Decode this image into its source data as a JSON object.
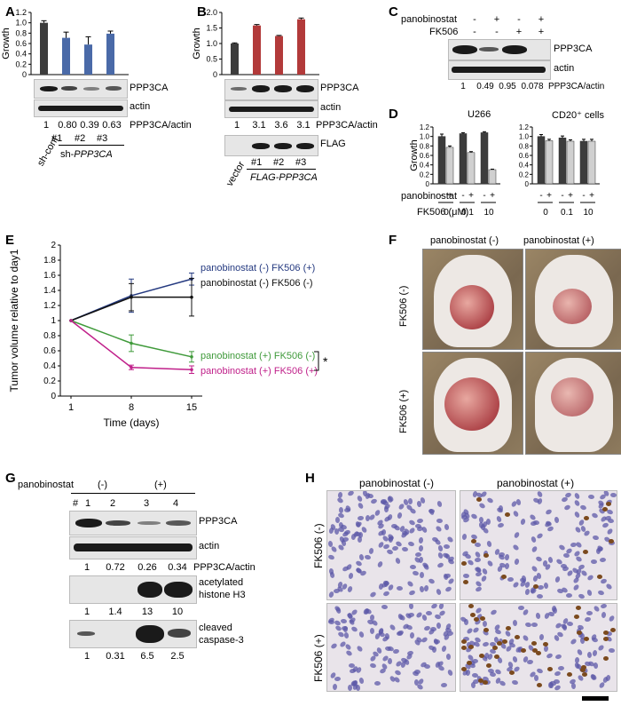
{
  "panels": {
    "A": "A",
    "B": "B",
    "C": "C",
    "D": "D",
    "E": "E",
    "F": "F",
    "G": "G",
    "H": "H"
  },
  "common": {
    "growth": "Growth",
    "actin": "actin",
    "ppp3ca": "PPP3CA",
    "ratio": "PPP3CA/actin",
    "panobinostat": "panobinostat",
    "fk506": "FK506"
  },
  "chart_data": [
    {
      "id": "A",
      "type": "bar",
      "ylabel": "Growth",
      "ylim": [
        0,
        1.2
      ],
      "yticks": [
        "0",
        "0.2",
        "0.4",
        "0.6",
        "0.8",
        "1.0",
        "1.2"
      ],
      "categories": [
        "sh-cont",
        "#1",
        "#2",
        "#3"
      ],
      "values": [
        1.0,
        0.71,
        0.58,
        0.79
      ],
      "errors": [
        0.04,
        0.11,
        0.15,
        0.05
      ],
      "colors": [
        "#3c3c3c",
        "#4a6aa8",
        "#4a6aa8",
        "#4a6aa8"
      ],
      "ratios": [
        "1",
        "0.80",
        "0.39",
        "0.63"
      ],
      "group_label_prefix": "sh-",
      "group_label_gene": "PPP3CA"
    },
    {
      "id": "B",
      "type": "bar",
      "ylabel": "Growth",
      "ylim": [
        0,
        2.0
      ],
      "yticks": [
        "0",
        "0.5",
        "1.0",
        "1.5",
        "2.0"
      ],
      "categories": [
        "vector",
        "#1",
        "#2",
        "#3"
      ],
      "values": [
        1.0,
        1.58,
        1.24,
        1.78
      ],
      "errors": [
        0.02,
        0.03,
        0.02,
        0.04
      ],
      "colors": [
        "#3c3c3c",
        "#b23a3a",
        "#b23a3a",
        "#b23a3a"
      ],
      "ratios": [
        "1",
        "3.1",
        "3.6",
        "3.1"
      ],
      "flag": "FLAG",
      "group_label": "FLAG-PPP3CA"
    },
    {
      "id": "C",
      "type": "table",
      "pano": [
        "-",
        "+",
        "-",
        "+"
      ],
      "fk": [
        "-",
        "-",
        "+",
        "+"
      ],
      "ratios": [
        "1",
        "0.49",
        "0.95",
        "0.078"
      ]
    },
    {
      "id": "D",
      "type": "bar",
      "titles": [
        "U266",
        "CD20⁺ cells"
      ],
      "ylabel": "Growth",
      "ylim": [
        0,
        1.2
      ],
      "yticks": [
        "0",
        "0.2",
        "0.4",
        "0.6",
        "0.8",
        "1.0",
        "1.2"
      ],
      "pano": [
        "-",
        "+",
        "-",
        "+",
        "-",
        "+"
      ],
      "fk_label": "FK506 (μM)",
      "fk_doses": [
        "0",
        "0.1",
        "10"
      ],
      "series": [
        {
          "name": "U266",
          "values": [
            1.0,
            0.77,
            1.06,
            0.66,
            1.08,
            0.3
          ],
          "errors": [
            0.05,
            0.03,
            0.02,
            0.02,
            0.02,
            0.01
          ]
        },
        {
          "name": "CD20+ cells",
          "values": [
            1.0,
            0.91,
            0.97,
            0.9,
            0.9,
            0.9
          ],
          "errors": [
            0.04,
            0.03,
            0.04,
            0.03,
            0.04,
            0.04
          ]
        }
      ],
      "colors": [
        "#3c3c3c",
        "#d0d0d0"
      ]
    },
    {
      "id": "E",
      "type": "line",
      "ylabel": "Tumor volume relative to day1",
      "xlabel": "Time (days)",
      "x": [
        1,
        8,
        15
      ],
      "ylim": [
        0,
        2
      ],
      "yticks": [
        "0",
        "0.2",
        "0.4",
        "0.6",
        "0.8",
        "1",
        "1.2",
        "1.4",
        "1.6",
        "1.8",
        "2"
      ],
      "xticks": [
        "1",
        "8",
        "15"
      ],
      "series": [
        {
          "name": "panobinostat (-) FK506 (+)",
          "color": "#253a80",
          "values": [
            1,
            1.33,
            1.55
          ],
          "errors": [
            0,
            0.22,
            0.08
          ]
        },
        {
          "name": "panobinostat (-) FK506 (-)",
          "color": "#111111",
          "values": [
            1,
            1.31,
            1.31
          ],
          "errors": [
            0,
            0.18,
            0.25
          ]
        },
        {
          "name": "panobinostat (+) FK506 (-)",
          "color": "#3f9a3a",
          "values": [
            1,
            0.7,
            0.52
          ],
          "errors": [
            0,
            0.11,
            0.07
          ]
        },
        {
          "name": "panobinostat (+) FK506 (+)",
          "color": "#c0208a",
          "values": [
            1,
            0.38,
            0.35
          ],
          "errors": [
            0,
            0.03,
            0.05
          ]
        }
      ],
      "star": "*"
    }
  ],
  "F": {
    "cols": [
      "panobinostat (-)",
      "panobinostat (+)"
    ],
    "rows": [
      "FK506 (-)",
      "FK506 (+)"
    ]
  },
  "G": {
    "pano": "panobinostat",
    "neg": "(-)",
    "pos": "(+)",
    "hash": "#",
    "lanes": [
      "1",
      "2",
      "3",
      "4"
    ],
    "ppp3ca_ratio": [
      "1",
      "0.72",
      "0.26",
      "0.34"
    ],
    "acetyl": "acetylated",
    "histone": "histone H3",
    "acetyl_vals": [
      "1",
      "1.4",
      "13",
      "10"
    ],
    "cleaved": "cleaved",
    "caspase": "caspase-3",
    "casp_vals": [
      "1",
      "0.31",
      "6.5",
      "2.5"
    ]
  },
  "H": {
    "cols": [
      "panobinostat (-)",
      "panobinostat (+)"
    ],
    "rows": [
      "FK506 (-)",
      "FK506 (+)"
    ]
  }
}
